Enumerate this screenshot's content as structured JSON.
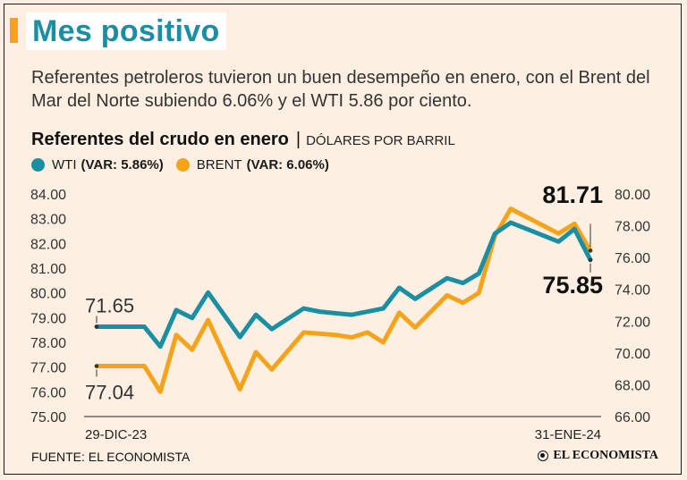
{
  "header": {
    "title": "Mes positivo",
    "description": "Referentes petroleros tuvieron un buen desempeño en enero, con el Brent del Mar del Norte subiendo 6.06% y el WTI 5.86 por ciento."
  },
  "colors": {
    "wti": "#1a8ea3",
    "brent": "#f5a31a",
    "accent": "#f5a31a",
    "title": "#1a8ea3"
  },
  "chart_data": {
    "type": "line",
    "title": "Referentes del crudo en enero",
    "unit": "DÓLARES POR BARRIL",
    "legend": [
      {
        "name": "WTI",
        "var": "(VAR: 5.86%)"
      },
      {
        "name": "BRENT",
        "var": "(VAR: 6.06%)"
      }
    ],
    "x_labels": {
      "start": "29-DIC-23",
      "end": "31-ENE-24"
    },
    "left_axis": {
      "ticks": [
        "84.00",
        "83.00",
        "82.00",
        "81.00",
        "80.00",
        "79.00",
        "78.00",
        "77.00",
        "76.00",
        "75.00"
      ],
      "range": [
        75,
        84
      ]
    },
    "right_axis": {
      "ticks": [
        "80.00",
        "78.00",
        "76.00",
        "74.00",
        "72.00",
        "70.00",
        "68.00",
        "66.00"
      ],
      "range": [
        66,
        80
      ]
    },
    "series": [
      {
        "name": "WTI",
        "axis": "right",
        "color": "#1a8ea3",
        "values": [
          71.65,
          71.65,
          71.65,
          71.65,
          70.4,
          72.7,
          72.2,
          73.8,
          71.0,
          72.4,
          71.5,
          72.8,
          72.6,
          72.4,
          72.8,
          74.1,
          73.4,
          74.7,
          74.4,
          75.0,
          77.5,
          78.2,
          77.0,
          77.8,
          75.85
        ],
        "idx": [
          0,
          1,
          2,
          3,
          4,
          5,
          6,
          7,
          9,
          10,
          11,
          13,
          14,
          16,
          18,
          19,
          20,
          22,
          23,
          24,
          25,
          26,
          29,
          30,
          31
        ],
        "start_label": "71.65",
        "end_label": "75.85"
      },
      {
        "name": "BRENT",
        "axis": "left",
        "color": "#f5a31a",
        "values": [
          77.04,
          77.04,
          77.04,
          77.04,
          76.0,
          78.3,
          77.7,
          78.9,
          76.1,
          77.6,
          76.9,
          78.4,
          78.3,
          78.2,
          78.4,
          78.0,
          79.2,
          78.6,
          79.9,
          79.6,
          80.0,
          82.3,
          83.4,
          82.4,
          82.8,
          81.71
        ],
        "idx": [
          0,
          1,
          2,
          3,
          4,
          5,
          6,
          7,
          9,
          10,
          11,
          13,
          15,
          16,
          17,
          18,
          19,
          20,
          22,
          23,
          24,
          25,
          26,
          29,
          30,
          31
        ],
        "start_label": "77.04",
        "end_label": "81.71"
      }
    ]
  },
  "footer": {
    "source": "FUENTE: EL ECONOMISTA",
    "brand": "EL ECONOMISTA"
  }
}
